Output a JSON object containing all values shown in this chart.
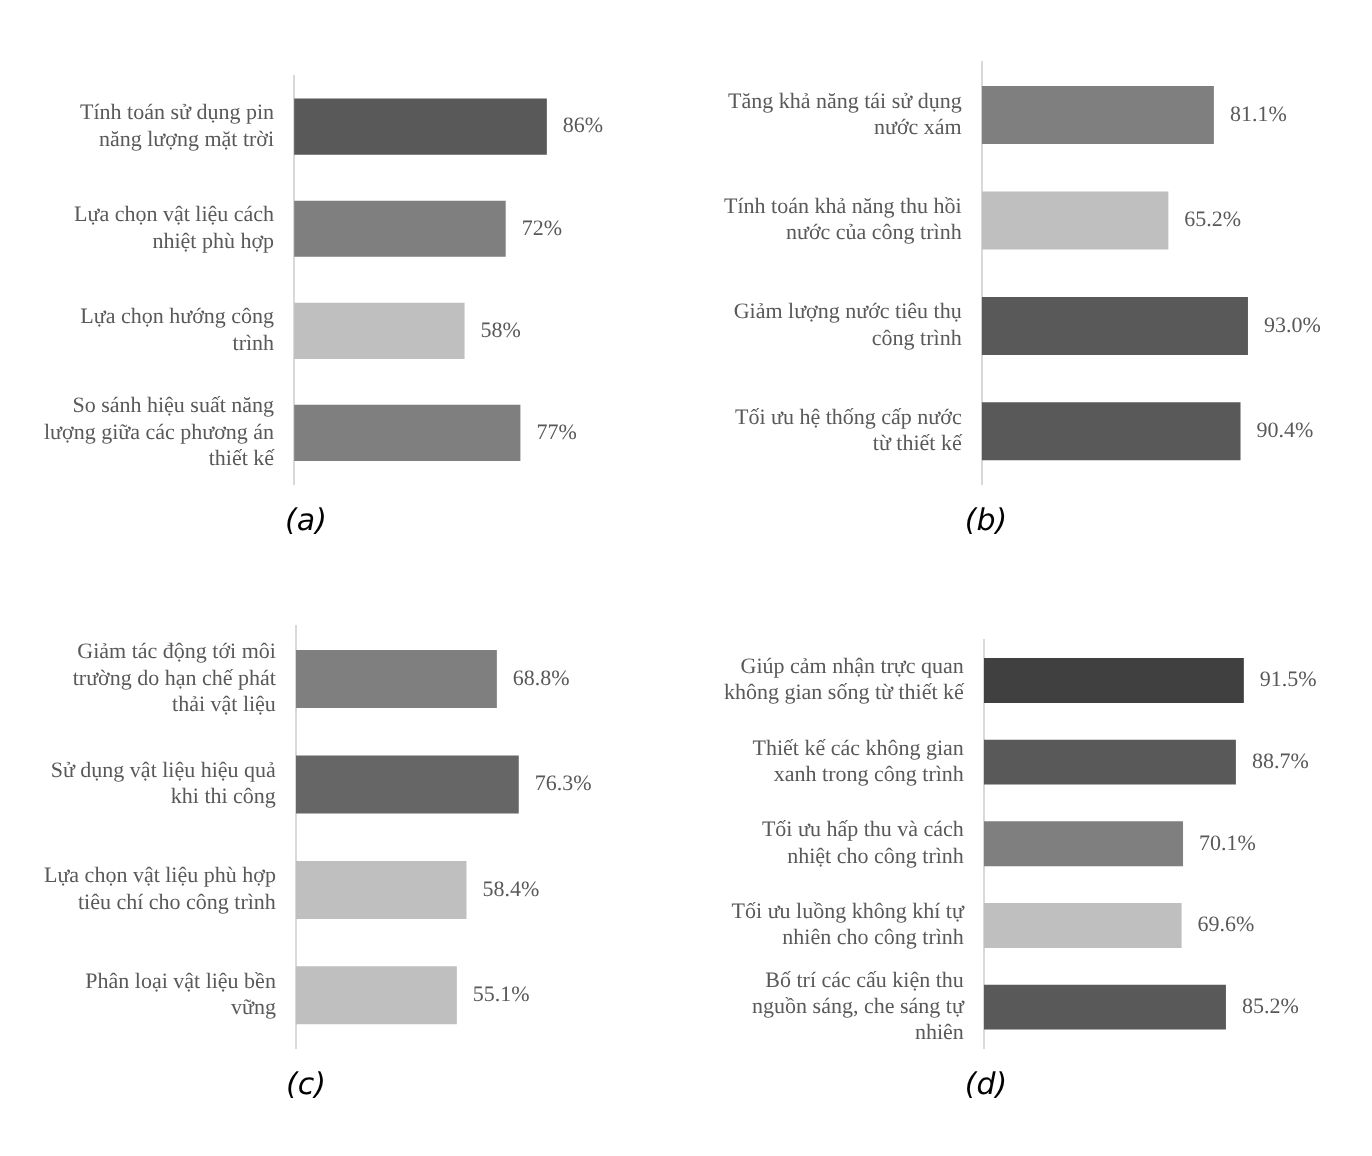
{
  "chart_data": [
    {
      "type": "bar",
      "orientation": "horizontal",
      "title": "(a)",
      "categories": [
        "Tính toán sử dụng pin năng lượng mặt trời",
        "Lựa chọn vật liệu cách nhiệt phù hợp",
        "Lựa chọn hướng công trình",
        "So sánh hiệu suất năng lượng giữa các phương án thiết kế"
      ],
      "values": [
        86,
        72,
        58,
        77
      ],
      "colors": [
        "#595959",
        "#7f7f7f",
        "#bfbfbf",
        "#7f7f7f"
      ],
      "value_labels": [
        "86%",
        "72%",
        "58%",
        "77%"
      ],
      "tick_labels": "y"
    },
    {
      "type": "bar",
      "orientation": "horizontal",
      "title": "(b)",
      "categories": [
        "Tăng khả năng tái sử dụng nước xám",
        "Tính toán khả năng thu hồi nước của công trình",
        "Giảm lượng nước tiêu thụ công trình",
        "Tối ưu hệ thống cấp nước từ thiết kế"
      ],
      "values": [
        81.1,
        65.2,
        93.0,
        90.4
      ],
      "colors": [
        "#7f7f7f",
        "#bfbfbf",
        "#595959",
        "#595959"
      ],
      "value_labels": [
        "81.1%",
        "65.2%",
        "93.0%",
        "90.4%"
      ],
      "tick_labels": "y"
    },
    {
      "type": "bar",
      "orientation": "horizontal",
      "title": "(c)",
      "categories": [
        "Giảm tác động tới môi trường do hạn chế phát thải vật liệu",
        "Sử dụng vật liệu hiệu quả khi thi công",
        "Lựa chọn vật liệu phù hợp tiêu chí cho công trình",
        "Phân loại vật liệu bền vững"
      ],
      "values": [
        68.8,
        76.3,
        58.4,
        55.1
      ],
      "colors": [
        "#7f7f7f",
        "#666666",
        "#bfbfbf",
        "#bfbfbf"
      ],
      "value_labels": [
        "68.8%",
        "76.3%",
        "58.4%",
        "55.1%"
      ],
      "tick_labels": "y"
    },
    {
      "type": "bar",
      "orientation": "horizontal",
      "title": "(d)",
      "categories": [
        "Giúp cảm nhận trực quan không gian sống từ thiết kế",
        "Thiết kế các không gian xanh trong công trình",
        "Tối ưu hấp thu và cách nhiệt cho công trình",
        "Tối ưu luồng không khí tự nhiên cho công trình",
        "Bố trí các cấu kiện thu nguồn sáng, che sáng tự nhiên"
      ],
      "values": [
        91.5,
        88.7,
        70.1,
        69.6,
        85.2
      ],
      "colors": [
        "#404040",
        "#595959",
        "#7f7f7f",
        "#bfbfbf",
        "#595959"
      ],
      "value_labels": [
        "91.5%",
        "88.7%",
        "70.1%",
        "69.6%",
        "85.2%"
      ],
      "tick_labels": "y"
    }
  ]
}
